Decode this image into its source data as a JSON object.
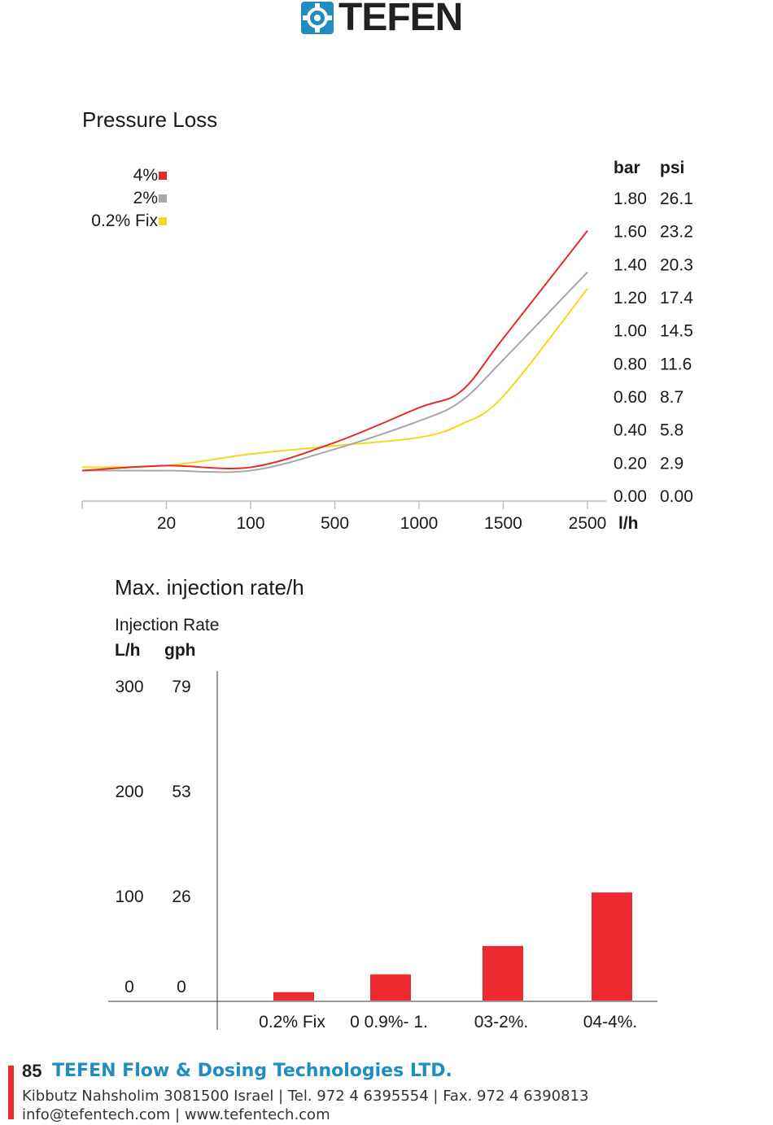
{
  "brand": {
    "name": "TEFEN",
    "color": "#1f8dc2"
  },
  "pressure_chart": {
    "title": "Pressure Loss",
    "legend": [
      {
        "label": "4%",
        "color": "#e52b2b"
      },
      {
        "label": "2%",
        "color": "#a7a7a9"
      },
      {
        "label": "0.2% Fix",
        "color": "#f3d81b"
      }
    ],
    "unit_bar": "bar",
    "unit_psi": "psi",
    "unit_flow": "l/h",
    "bar_ticks": [
      "1.80",
      "1.60",
      "1.40",
      "1.20",
      "1.00",
      "0.80",
      "0.60",
      "0.40",
      "0.20",
      "0.00"
    ],
    "psi_ticks": [
      "26.1",
      "23.2",
      "20.3",
      "17.4",
      "14.5",
      "11.6",
      "8.7",
      "5.8",
      "2.9",
      "0.00"
    ],
    "x_ticks": [
      "20",
      "100",
      "500",
      "1000",
      "1500",
      "2500"
    ]
  },
  "injection_chart": {
    "title": "Max. injection rate/h",
    "subtitle": "Injection Rate",
    "unit_lh": "L/h",
    "unit_gph": "gph",
    "lh_ticks": [
      "300",
      "200",
      "100",
      "0"
    ],
    "gph_ticks": [
      "79",
      "53",
      "26",
      "0"
    ],
    "bar_color": "#ec2a30"
  },
  "chart_data": [
    {
      "type": "line",
      "title": "Pressure Loss",
      "xlabel": "l/h",
      "ylabel": "bar / psi",
      "x_categories": [
        "",
        "20",
        "100",
        "500",
        "1000",
        "1500",
        "2500"
      ],
      "ylim": [
        0,
        1.8
      ],
      "grid": false,
      "legend_position": "top-left",
      "series": [
        {
          "name": "4%",
          "color": "#e52b2b",
          "points": [
            [
              0,
              0.15
            ],
            [
              1,
              0.18
            ],
            [
              2,
              0.17
            ],
            [
              3,
              0.32
            ],
            [
              4,
              0.53
            ],
            [
              4.5,
              0.63
            ],
            [
              5,
              0.95
            ],
            [
              6,
              1.6
            ]
          ]
        },
        {
          "name": "2%",
          "color": "#a7a7a9",
          "points": [
            [
              0,
              0.15
            ],
            [
              1,
              0.15
            ],
            [
              2,
              0.15
            ],
            [
              3,
              0.28
            ],
            [
              4,
              0.45
            ],
            [
              4.5,
              0.57
            ],
            [
              5,
              0.82
            ],
            [
              6,
              1.35
            ]
          ]
        },
        {
          "name": "0.2% Fix",
          "color": "#f3d81b",
          "points": [
            [
              0,
              0.17
            ],
            [
              1,
              0.18
            ],
            [
              2,
              0.25
            ],
            [
              3,
              0.3
            ],
            [
              4,
              0.35
            ],
            [
              4.5,
              0.43
            ],
            [
              5,
              0.6
            ],
            [
              6,
              1.25
            ]
          ]
        }
      ]
    },
    {
      "type": "bar",
      "title": "Max. injection rate/h",
      "ylabel": "Injection Rate L/h",
      "categories": [
        "0.2% Fix",
        "0 0.9%- 1.",
        "03-2%.",
        "04-4%."
      ],
      "values": [
        8,
        25,
        52,
        103
      ],
      "ylim": [
        0,
        300
      ],
      "grid": false
    }
  ],
  "footer": {
    "page_number": "85",
    "company": "TEFEN Flow & Dosing Technologies LTD.",
    "address": "Kibbutz Nahsholim 3081500 Israel | Tel. 972 4 6395554 | Fax. 972 4 6390813",
    "contact": "info@tefentech.com | www.tefentech.com"
  }
}
